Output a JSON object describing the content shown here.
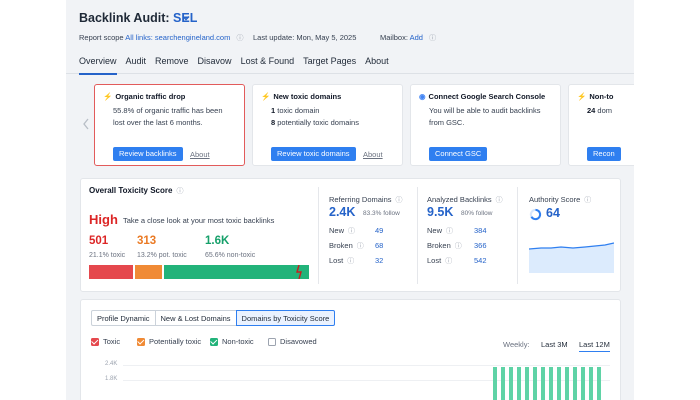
{
  "header": {
    "title": "Backlink Audit:",
    "project": "SEL",
    "report_scope_label": "Report scope",
    "report_scope_value": "All links: searchengineland.com",
    "last_update": "Last update: Mon, May 5, 2025",
    "mailbox_label": "Mailbox:",
    "mailbox_action": "Add"
  },
  "tabs": [
    "Overview",
    "Audit",
    "Remove",
    "Disavow",
    "Lost & Found",
    "Target Pages",
    "About"
  ],
  "cards": [
    {
      "title": "Organic traffic drop",
      "line1": "55.8% of organic traffic has been",
      "line2": "lost over the last 6 months.",
      "button": "Review backlinks",
      "link": "About"
    },
    {
      "title": "New toxic domains",
      "line1_num": "1",
      "line1_txt": " toxic domain",
      "line2_num": "8",
      "line2_txt": " potentially toxic domains",
      "button": "Review toxic domains",
      "link": "About"
    },
    {
      "title": "Connect Google Search Console",
      "line1": "You will be able to audit backlinks",
      "line2": "from GSC.",
      "button": "Connect GSC"
    },
    {
      "title": "Non-to",
      "line1_num": "24",
      "line1_txt": " dom",
      "button": "Recon"
    }
  ],
  "toxicity": {
    "title": "Overall Toxicity Score",
    "level": "High",
    "desc": "Take a close look at your most toxic backlinks",
    "toxic_value": "501",
    "toxic_sub": "21.1% toxic",
    "pot_value": "313",
    "pot_sub": "13.2% pot. toxic",
    "non_value": "1.6K",
    "non_sub": "65.6% non-toxic",
    "shares": {
      "toxic": 0.211,
      "potentially_toxic": 0.132,
      "non_toxic": 0.656
    }
  },
  "referring_domains": {
    "title": "Referring Domains",
    "value": "2.4K",
    "sub": "83.3% follow",
    "rows": [
      {
        "label": "New",
        "value": "49"
      },
      {
        "label": "Broken",
        "value": "68"
      },
      {
        "label": "Lost",
        "value": "32"
      }
    ]
  },
  "analyzed_backlinks": {
    "title": "Analyzed Backlinks",
    "value": "9.5K",
    "sub": "80% follow",
    "rows": [
      {
        "label": "New",
        "value": "384"
      },
      {
        "label": "Broken",
        "value": "366"
      },
      {
        "label": "Lost",
        "value": "542"
      }
    ]
  },
  "authority": {
    "title": "Authority Score",
    "value": "64"
  },
  "bottom": {
    "views": [
      "Profile Dynamic",
      "New & Lost Domains",
      "Domains by Toxicity Score"
    ],
    "legend": [
      {
        "label": "Toxic",
        "color": "#e5484d",
        "checked": true
      },
      {
        "label": "Potentially toxic",
        "color": "#f08a35",
        "checked": true
      },
      {
        "label": "Non-toxic",
        "color": "#22b37a",
        "checked": true
      },
      {
        "label": "Disavowed",
        "color": "#ffffff",
        "checked": false
      }
    ],
    "period_label": "Weekly:",
    "periods": [
      "Last 3M",
      "Last 12M"
    ],
    "y_ticks": [
      "2.4K",
      "1.8K"
    ]
  },
  "colors": {
    "accent": "#2f7ff0",
    "toxic": "#e5484d",
    "potentially_toxic": "#f08a35",
    "non_toxic": "#22b37a"
  }
}
